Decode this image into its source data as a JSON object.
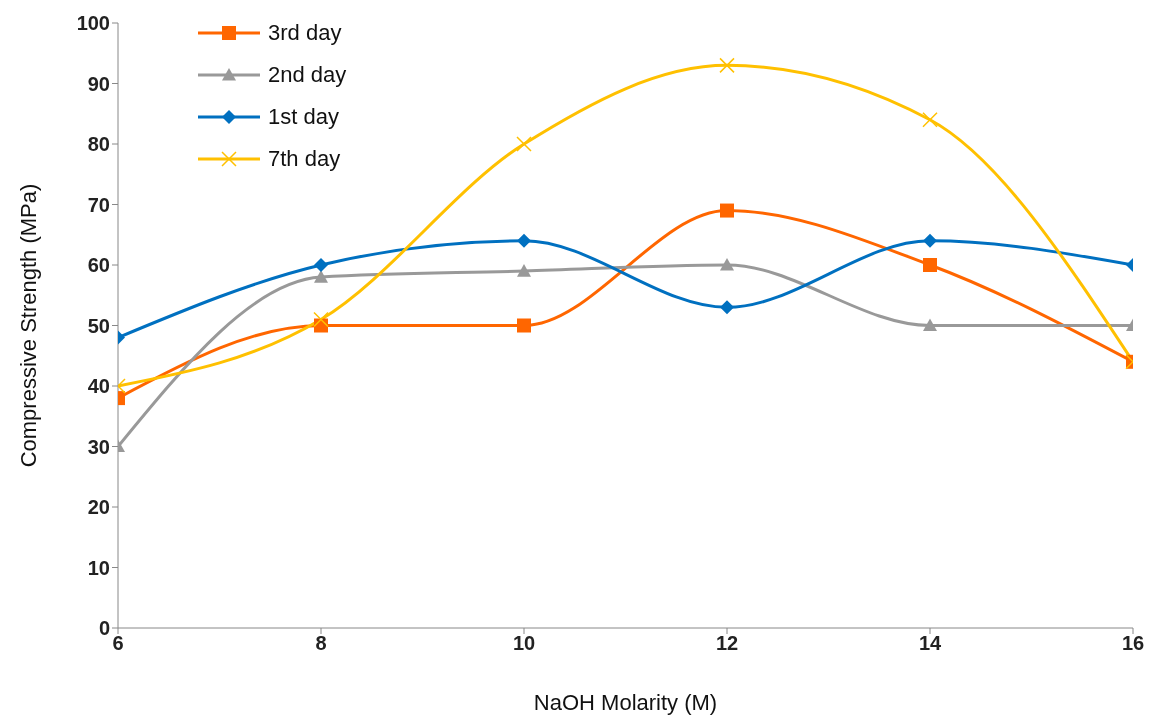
{
  "chart_data": {
    "type": "line",
    "xlabel": "NaOH Molarity (M)",
    "ylabel": "Compressive Strength (MPa)",
    "x": [
      6,
      8,
      10,
      12,
      14,
      16
    ],
    "series": [
      {
        "name": "3rd day",
        "color": "#ff6600",
        "marker": "square",
        "values": [
          38,
          50,
          50,
          69,
          60,
          44
        ]
      },
      {
        "name": "2nd day",
        "color": "#999999",
        "marker": "triangle",
        "values": [
          30,
          58,
          59,
          60,
          50,
          50
        ]
      },
      {
        "name": "1st day",
        "color": "#0070c0",
        "marker": "diamond",
        "values": [
          48,
          60,
          64,
          53,
          64,
          60
        ]
      },
      {
        "name": "7th day",
        "color": "#ffc000",
        "marker": "cross",
        "values": [
          40,
          51,
          80,
          93,
          84,
          44
        ]
      }
    ],
    "xlim": [
      6,
      16
    ],
    "xticks": [
      6,
      8,
      10,
      12,
      14,
      16
    ],
    "ylim": [
      0,
      100
    ],
    "yticks": [
      0,
      10,
      20,
      30,
      40,
      50,
      60,
      70,
      80,
      90,
      100
    ],
    "grid": false,
    "legend": "top left",
    "line_style": "solid"
  }
}
